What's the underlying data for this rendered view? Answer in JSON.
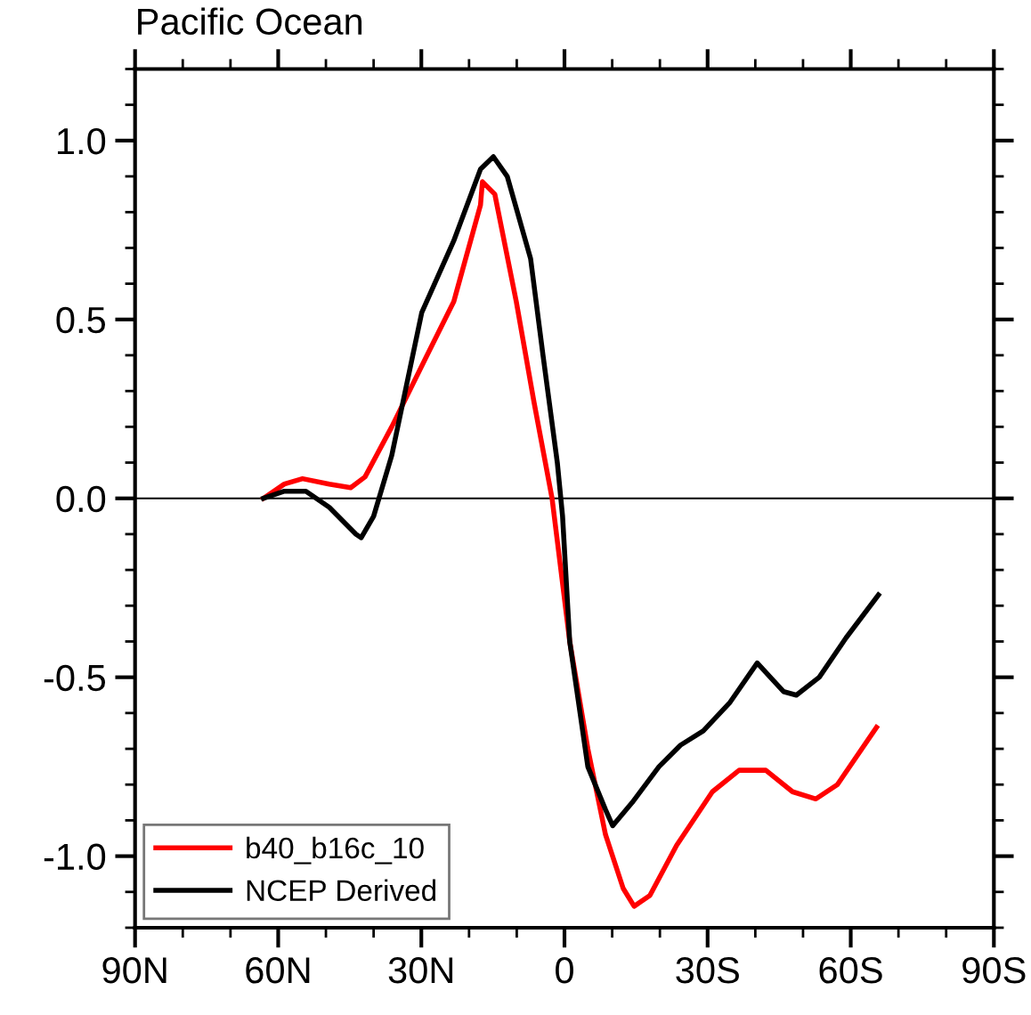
{
  "chart_data": {
    "type": "line",
    "title": "Pacific Ocean",
    "xlim": [
      90,
      -90
    ],
    "xticks": [
      {
        "value": 90,
        "label": "90N"
      },
      {
        "value": 60,
        "label": "60N"
      },
      {
        "value": 30,
        "label": "30N"
      },
      0,
      {
        "value": -30,
        "label": "30S"
      },
      {
        "value": -60,
        "label": "60S"
      },
      {
        "value": -90,
        "label": "90S"
      }
    ],
    "ylim": [
      -1.2,
      1.2
    ],
    "yticks": [
      {
        "value": -1.0,
        "label": "-1.0"
      },
      {
        "value": -0.5,
        "label": "-0.5"
      },
      {
        "value": 0.0,
        "label": "0.0"
      },
      {
        "value": 0.5,
        "label": "0.5"
      },
      {
        "value": 1.0,
        "label": "1.0"
      }
    ],
    "ref_lines": [
      {
        "axis": "y",
        "value": 0,
        "color": "#000000"
      }
    ],
    "legend": "bottom left",
    "grid": false,
    "marker": "none",
    "line_style": "solid",
    "series": [
      {
        "name": "b40_b16c_10",
        "color": "#ff0000",
        "x": [
          63.1,
          58.7,
          54.9,
          49.3,
          44.8,
          41.8,
          36.2,
          28.8,
          23.2,
          17.6,
          17.2,
          14.6,
          10.1,
          6.4,
          2.6,
          -1.1,
          -4.9,
          -8.6,
          -12.3,
          -14.6,
          -17.9,
          -23.5,
          -31,
          -36.6,
          -42.2,
          -47.8,
          -52.7,
          -57.2,
          -65.4
        ],
        "values": [
          0,
          0.04,
          0.055,
          0.04,
          0.03,
          0.06,
          0.2,
          0.4,
          0.55,
          0.82,
          0.885,
          0.85,
          0.55,
          0.27,
          0,
          -0.4,
          -0.7,
          -0.94,
          -1.09,
          -1.14,
          -1.11,
          -0.97,
          -0.82,
          -0.76,
          -0.76,
          -0.82,
          -0.84,
          -0.8,
          -0.64
        ]
      },
      {
        "name": "NCEP Derived",
        "color": "#000000",
        "x": [
          63.1,
          58.7,
          54.2,
          49.3,
          43.7,
          42.6,
          40,
          36.2,
          29.9,
          23.2,
          17.6,
          14.9,
          12,
          7.1,
          4.5,
          1.5,
          0.4,
          -1.1,
          -4.9,
          -8.6,
          -10.1,
          -14.2,
          -19.8,
          -24.3,
          -29.1,
          -34.7,
          -40.4,
          -45.9,
          -48.6,
          -53.4,
          -59,
          -65.8
        ],
        "values": [
          0,
          0.02,
          0.02,
          -0.025,
          -0.1,
          -0.11,
          -0.05,
          0.12,
          0.52,
          0.72,
          0.92,
          0.955,
          0.9,
          0.67,
          0.4,
          0.1,
          -0.05,
          -0.4,
          -0.75,
          -0.87,
          -0.915,
          -0.85,
          -0.75,
          -0.69,
          -0.65,
          -0.57,
          -0.46,
          -0.54,
          -0.55,
          -0.5,
          -0.39,
          -0.27
        ]
      }
    ]
  }
}
